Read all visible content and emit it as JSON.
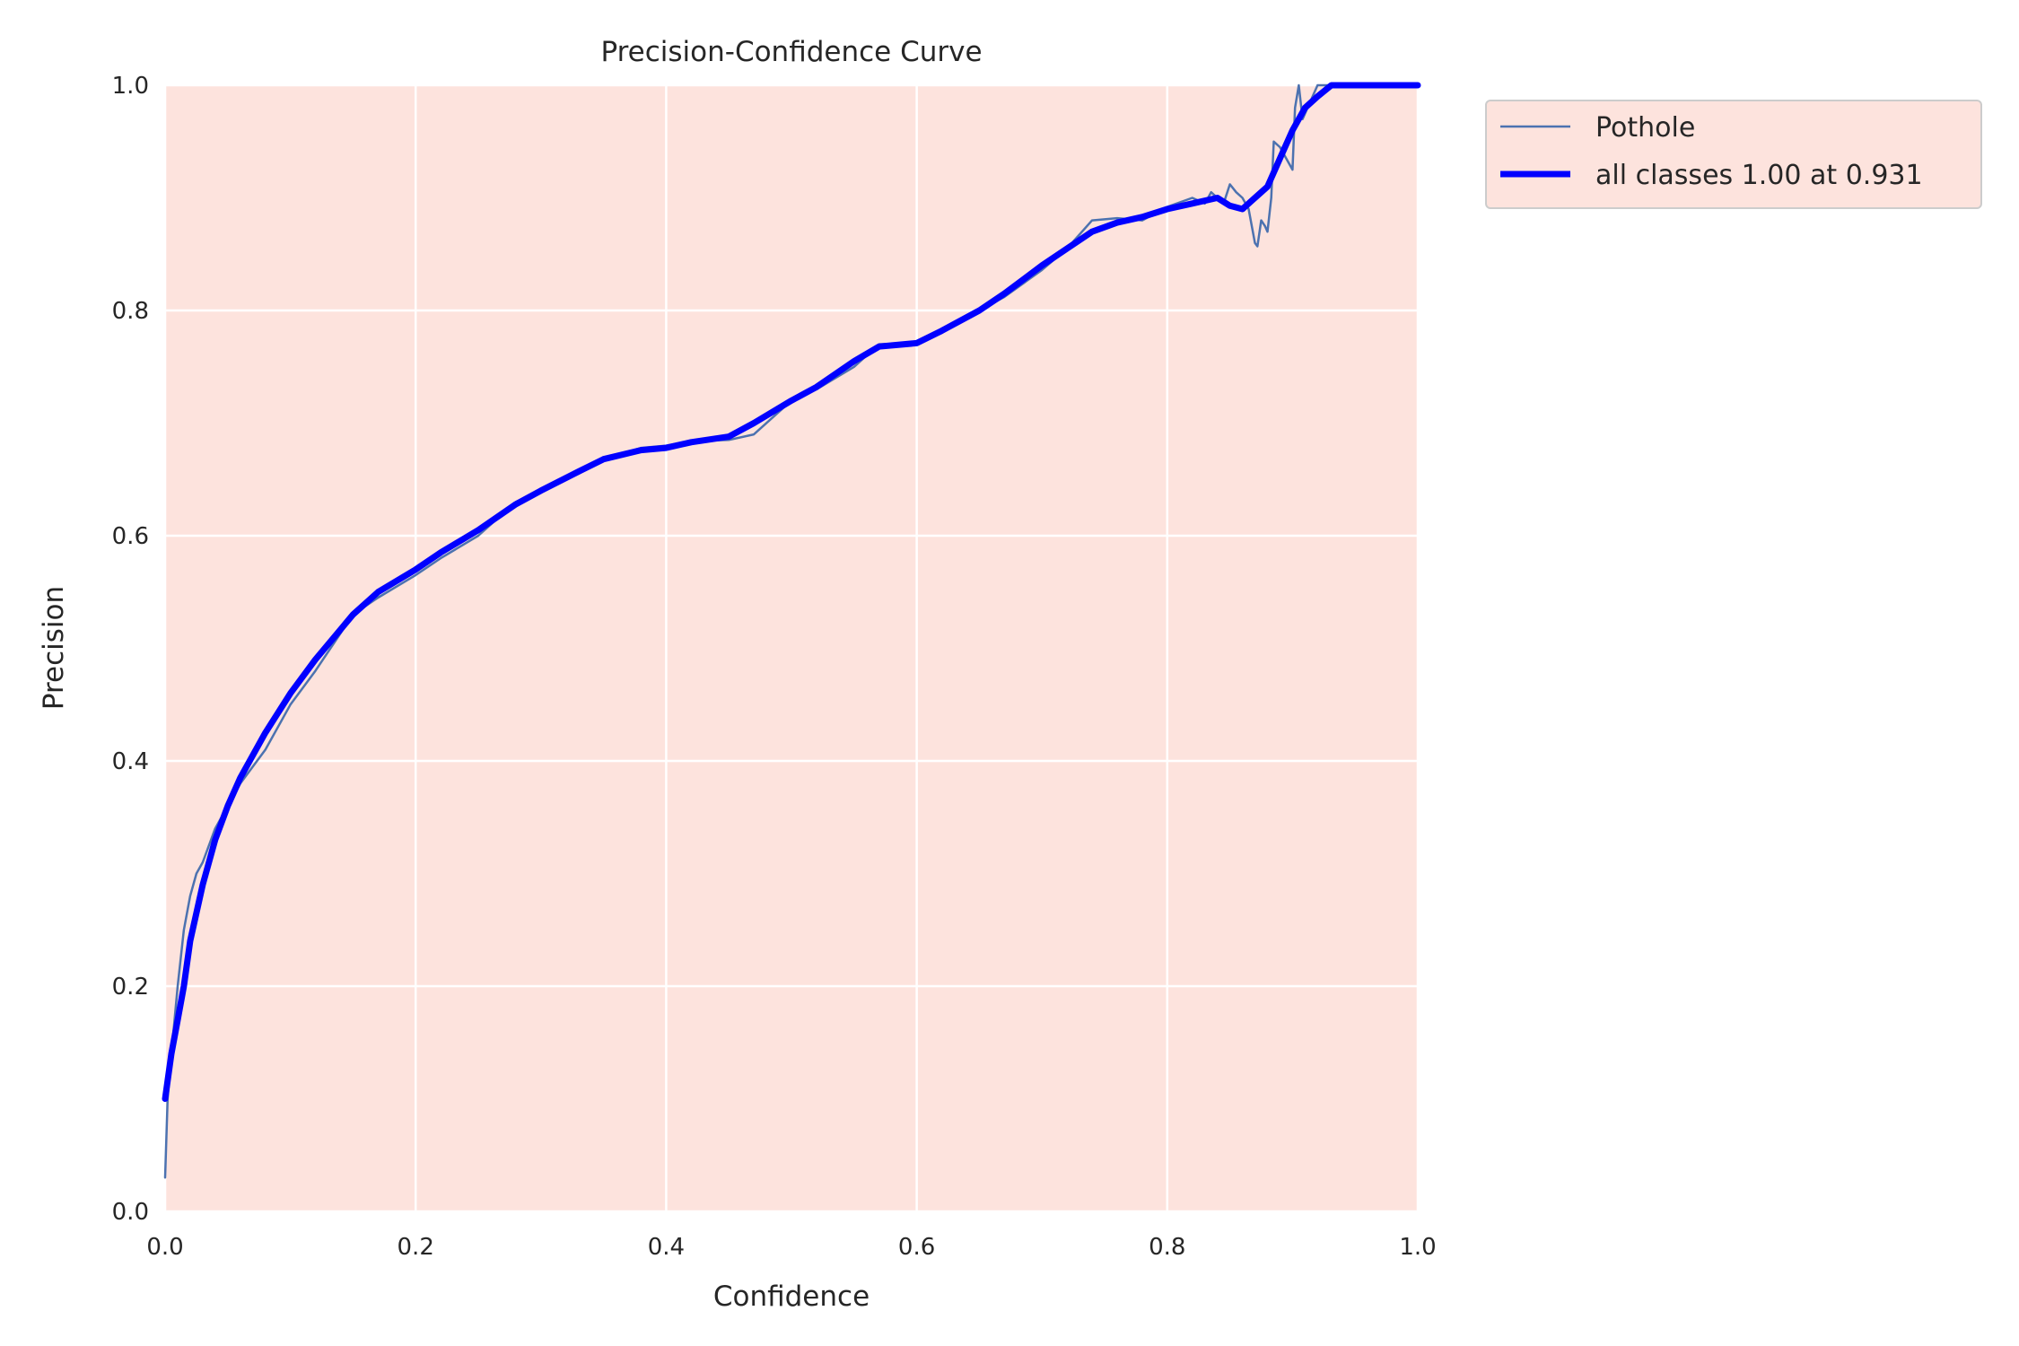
{
  "chart_data": {
    "type": "line",
    "title": "Precision-Confidence Curve",
    "xlabel": "Confidence",
    "ylabel": "Precision",
    "xlim": [
      0,
      1
    ],
    "ylim": [
      0,
      1
    ],
    "xticks": [
      "0.0",
      "0.2",
      "0.4",
      "0.6",
      "0.8",
      "1.0"
    ],
    "yticks": [
      "0.0",
      "0.2",
      "0.4",
      "0.6",
      "0.8",
      "1.0"
    ],
    "grid": true,
    "legend_position": "outside-top-right",
    "colors": {
      "plot_background": "#fde3dd",
      "grid": "#ffffff",
      "pothole": "#4c72b0",
      "all_classes": "#0000ff"
    },
    "series": [
      {
        "name": "Pothole",
        "x": [
          0.0,
          0.002,
          0.005,
          0.01,
          0.015,
          0.02,
          0.025,
          0.03,
          0.04,
          0.05,
          0.06,
          0.08,
          0.1,
          0.12,
          0.15,
          0.17,
          0.2,
          0.22,
          0.25,
          0.28,
          0.3,
          0.33,
          0.35,
          0.38,
          0.4,
          0.42,
          0.45,
          0.47,
          0.5,
          0.52,
          0.55,
          0.57,
          0.6,
          0.62,
          0.65,
          0.67,
          0.7,
          0.72,
          0.74,
          0.76,
          0.78,
          0.8,
          0.82,
          0.83,
          0.835,
          0.84,
          0.845,
          0.85,
          0.855,
          0.86,
          0.865,
          0.87,
          0.872,
          0.875,
          0.878,
          0.88,
          0.883,
          0.885,
          0.89,
          0.895,
          0.9,
          0.902,
          0.905,
          0.908,
          0.91,
          0.92,
          0.93,
          0.95,
          1.0
        ],
        "y": [
          0.03,
          0.1,
          0.14,
          0.2,
          0.25,
          0.28,
          0.3,
          0.31,
          0.34,
          0.36,
          0.38,
          0.41,
          0.45,
          0.48,
          0.53,
          0.545,
          0.565,
          0.58,
          0.6,
          0.63,
          0.64,
          0.655,
          0.668,
          0.678,
          0.68,
          0.684,
          0.685,
          0.69,
          0.72,
          0.73,
          0.75,
          0.77,
          0.771,
          0.78,
          0.8,
          0.812,
          0.836,
          0.855,
          0.88,
          0.882,
          0.88,
          0.892,
          0.9,
          0.895,
          0.905,
          0.9,
          0.895,
          0.912,
          0.905,
          0.9,
          0.89,
          0.86,
          0.857,
          0.88,
          0.875,
          0.87,
          0.9,
          0.95,
          0.945,
          0.935,
          0.925,
          0.98,
          1.0,
          0.97,
          0.975,
          1.0,
          1.0,
          1.0,
          1.0
        ]
      },
      {
        "name": "all classes 1.00 at 0.931",
        "x": [
          0.0,
          0.005,
          0.01,
          0.015,
          0.02,
          0.03,
          0.04,
          0.05,
          0.06,
          0.08,
          0.1,
          0.12,
          0.15,
          0.17,
          0.2,
          0.22,
          0.25,
          0.28,
          0.3,
          0.33,
          0.35,
          0.38,
          0.4,
          0.42,
          0.45,
          0.47,
          0.5,
          0.52,
          0.55,
          0.57,
          0.6,
          0.62,
          0.65,
          0.67,
          0.7,
          0.72,
          0.74,
          0.76,
          0.78,
          0.8,
          0.82,
          0.84,
          0.85,
          0.86,
          0.87,
          0.88,
          0.89,
          0.9,
          0.91,
          0.92,
          0.931,
          0.95,
          1.0
        ],
        "y": [
          0.1,
          0.14,
          0.17,
          0.2,
          0.24,
          0.29,
          0.33,
          0.36,
          0.385,
          0.425,
          0.46,
          0.49,
          0.53,
          0.55,
          0.57,
          0.585,
          0.605,
          0.628,
          0.64,
          0.657,
          0.668,
          0.676,
          0.678,
          0.683,
          0.688,
          0.7,
          0.72,
          0.732,
          0.755,
          0.768,
          0.771,
          0.782,
          0.8,
          0.815,
          0.84,
          0.855,
          0.87,
          0.878,
          0.883,
          0.89,
          0.895,
          0.9,
          0.893,
          0.89,
          0.9,
          0.91,
          0.935,
          0.96,
          0.98,
          0.99,
          1.0,
          1.0,
          1.0
        ]
      }
    ]
  }
}
